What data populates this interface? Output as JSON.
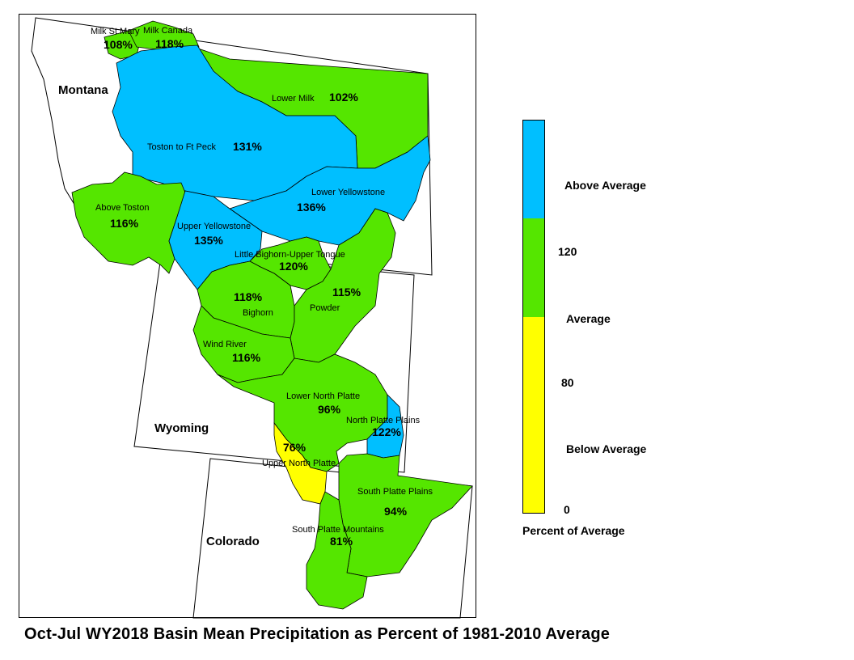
{
  "title": "Oct-Jul WY2018 Basin Mean Precipitation as Percent of 1981-2010 Average",
  "states": {
    "montana": "Montana",
    "wyoming": "Wyoming",
    "colorado": "Colorado"
  },
  "colors": {
    "above": "#00BFFF",
    "average": "#55E600",
    "below": "#FFFF00",
    "outline": "#000000"
  },
  "basins": [
    {
      "name": "Milk St Mary",
      "pct": "108%",
      "category": "average"
    },
    {
      "name": "Milk Canada",
      "pct": "118%",
      "category": "average"
    },
    {
      "name": "Lower Milk",
      "pct": "102%",
      "category": "average"
    },
    {
      "name": "Toston to Ft Peck",
      "pct": "131%",
      "category": "above"
    },
    {
      "name": "Lower Yellowstone",
      "pct": "136%",
      "category": "above"
    },
    {
      "name": "Above Toston",
      "pct": "116%",
      "category": "average"
    },
    {
      "name": "Upper Yellowstone",
      "pct": "135%",
      "category": "above"
    },
    {
      "name": "Little Bighorn-Upper Tongue",
      "pct": "120%",
      "category": "average"
    },
    {
      "name": "Bighorn",
      "pct": "118%",
      "category": "average"
    },
    {
      "name": "Powder",
      "pct": "115%",
      "category": "average"
    },
    {
      "name": "Wind River",
      "pct": "116%",
      "category": "average"
    },
    {
      "name": "Lower North Platte",
      "pct": "96%",
      "category": "average"
    },
    {
      "name": "North Platte Plains",
      "pct": "122%",
      "category": "above"
    },
    {
      "name": "Upper North Platte",
      "pct": "76%",
      "category": "below"
    },
    {
      "name": "South Platte Plains",
      "pct": "94%",
      "category": "average"
    },
    {
      "name": "South Platte Mountains",
      "pct": "81%",
      "category": "average"
    }
  ],
  "legend": {
    "title": "Percent of Average",
    "above_label": "Above Average",
    "average_label": "Average",
    "below_label": "Below Average",
    "ticks": [
      "120",
      "80",
      "0"
    ],
    "ranges": {
      "max": 160,
      "upper": 120,
      "lower": 80,
      "min": 0
    }
  }
}
